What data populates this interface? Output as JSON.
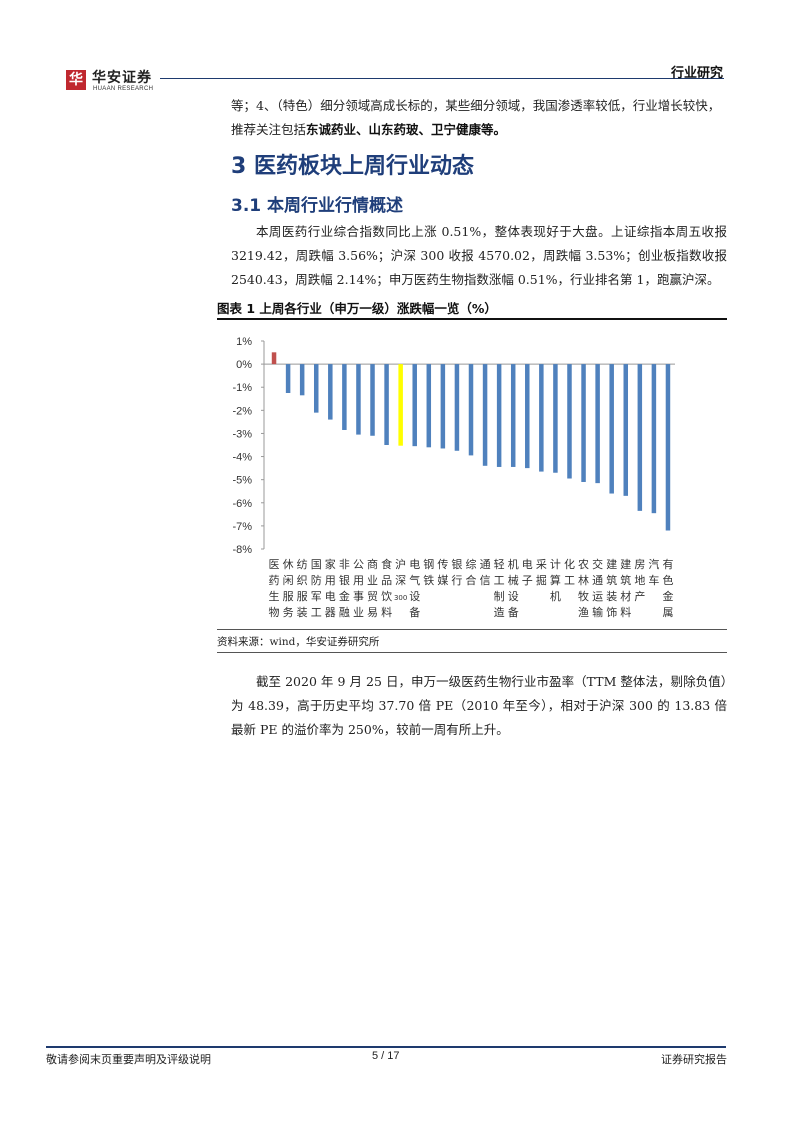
{
  "header": {
    "logo_mark": "华",
    "logo_cn": "华安证券",
    "logo_en": "HUAAN RESEARCH",
    "report_tag": "行业研究"
  },
  "intro": {
    "line1": "等；4、（特色）细分领域高成长标的，某些细分领域，我国渗透率较低，行业增长较快，",
    "line2_prefix": "推荐关注包括",
    "line2_bold": "东诚药业、山东药玻、卫宁健康等。"
  },
  "section": {
    "h1": "3 医药板块上周行业动态",
    "h2": "3.1 本周行业行情概述",
    "para1": "本周医药行业综合指数同比上涨 0.51%，整体表现好于大盘。上证综指本周五收报 3219.42，周跌幅 3.56%；沪深 300 收报 4570.02，周跌幅 3.53%；创业板指数收报 2540.43，周跌幅 2.14%；申万医药生物指数涨幅 0.51%，行业排名第 1，跑赢沪深。"
  },
  "figure": {
    "title": "图表 1 上周各行业（申万一级）涨跌幅一览（%）",
    "source": "资料来源：wind，华安证券研究所"
  },
  "chart_data": {
    "type": "bar",
    "categories": [
      "医药生物",
      "休闲服务",
      "纺织服装",
      "国防军工",
      "家用电器",
      "非银金融",
      "公用事业",
      "商业贸易",
      "食品饮料",
      "沪深300",
      "电气设备",
      "钢铁",
      "传媒",
      "银行",
      "综合",
      "通信",
      "轻工制造",
      "机械设备",
      "电子",
      "采掘",
      "计算机",
      "化工",
      "农林牧渔",
      "交通运输",
      "建筑装饰",
      "建筑材料",
      "房地产",
      "汽车",
      "有色金属"
    ],
    "values": [
      0.51,
      -1.25,
      -1.35,
      -2.1,
      -2.4,
      -2.85,
      -3.05,
      -3.1,
      -3.5,
      -3.53,
      -3.55,
      -3.6,
      -3.65,
      -3.75,
      -3.95,
      -4.4,
      -4.45,
      -4.45,
      -4.5,
      -4.65,
      -4.7,
      -4.95,
      -5.1,
      -5.15,
      -5.6,
      -5.7,
      -6.35,
      -6.45,
      -7.2
    ],
    "ylim": [
      -8,
      1
    ],
    "yticks": [
      1,
      0,
      -1,
      -2,
      -3,
      -4,
      -5,
      -6,
      -7,
      -8
    ],
    "yticklabels": [
      "1%",
      "0%",
      "-1%",
      "-2%",
      "-3%",
      "-4%",
      "-5%",
      "-6%",
      "-7%",
      "-8%"
    ],
    "xticklabels": [
      "医药生物",
      "休闲服务",
      "纺织服装",
      "国防军工",
      "家用电器",
      "非银金融",
      "公用事业",
      "商业贸易",
      "食品饮料",
      "沪深300",
      "电气设备",
      "钢铁",
      "传媒",
      "银行",
      "综合",
      "通信",
      "轻工制造",
      "机械设备",
      "电子",
      "采掘",
      "计算机",
      "化工",
      "农林牧渔",
      "交通运输",
      "建筑装饰",
      "建筑材料",
      "房地产",
      "汽车",
      "有色金属"
    ],
    "grid": false,
    "legend": "none",
    "colors": {
      "positive": "#c0504d",
      "benchmark": "#ffff00",
      "default": "#4f81bd"
    },
    "benchmark_index": 9
  },
  "closing": {
    "para": "截至 2020 年 9 月 25 日，申万一级医药生物行业市盈率（TTM 整体法，剔除负值）为 48.39，高于历史平均 37.70 倍 PE（2010 年至今），相对于沪深 300 的 13.83 倍最新 PE 的溢价率为 250%，较前一周有所上升。"
  },
  "footer": {
    "disclaimer": "敬请参阅末页重要声明及评级说明",
    "page": "5 / 17",
    "doc_type": "证券研究报告"
  }
}
